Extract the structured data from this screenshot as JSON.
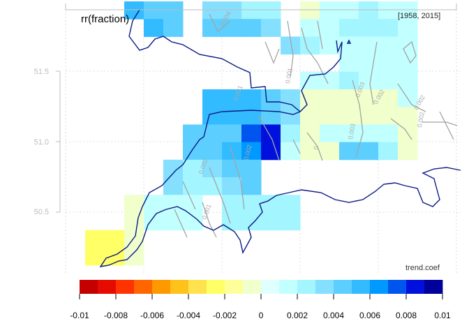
{
  "title": "rr(fraction)",
  "period": "[1958, 2015]",
  "legend_title": "trend.coef",
  "y_axis": {
    "ticks": [
      "51.5",
      "51.0",
      "50.5"
    ]
  },
  "colorbar": {
    "tick_labels": [
      "-0.01",
      "-0.008",
      "-0.006",
      "-0.004",
      "-0.002",
      "0",
      "0.002",
      "0.004",
      "0.006",
      "0.008",
      "0.01"
    ],
    "colors": [
      "#c40000",
      "#e60b00",
      "#ff3300",
      "#ff6600",
      "#ff9900",
      "#ffc21a",
      "#ffe24d",
      "#ffff66",
      "#ffff99",
      "#f0ffcc",
      "#e0ffff",
      "#c2ffff",
      "#a3f5ff",
      "#85e0ff",
      "#5ccfff",
      "#33bbff",
      "#0099ff",
      "#0055ee",
      "#0011dd",
      "#00009a"
    ]
  },
  "contour_labels": [
    "0.004",
    "0.002",
    "0.002",
    "0.001",
    "0",
    "0.003",
    "0.002",
    "0.002",
    "0.002",
    "0.001",
    "0.001",
    "0.003"
  ],
  "chart_data": {
    "type": "heatmap",
    "title": "rr(fraction)",
    "subtitle": "[1958, 2015]",
    "legend_title": "trend.coef",
    "yticks": [
      51.5,
      51.0,
      50.5
    ],
    "color_scale": {
      "min": -0.01,
      "max": 0.01,
      "step": 0.001
    },
    "cells": [
      {
        "row": 0,
        "col": 3,
        "value": 0.005
      },
      {
        "row": 0,
        "col": 4,
        "value": 0.004
      },
      {
        "row": 0,
        "col": 5,
        "value": 0.004
      },
      {
        "row": 0,
        "col": 7,
        "value": 0.003
      },
      {
        "row": 0,
        "col": 8,
        "value": 0.003
      },
      {
        "row": 0,
        "col": 9,
        "value": 0.002
      },
      {
        "row": 0,
        "col": 10,
        "value": 0.002
      },
      {
        "row": 0,
        "col": 12,
        "value": -0.001
      },
      {
        "row": 0,
        "col": 13,
        "value": 0.001
      },
      {
        "row": 0,
        "col": 14,
        "value": 0.001
      },
      {
        "row": 0,
        "col": 15,
        "value": 0.002
      },
      {
        "row": 0,
        "col": 16,
        "value": 0.001
      },
      {
        "row": 0,
        "col": 17,
        "value": 0.001
      },
      {
        "row": 1,
        "col": 4,
        "value": 0.005
      },
      {
        "row": 1,
        "col": 5,
        "value": 0.004
      },
      {
        "row": 1,
        "col": 7,
        "value": 0.004
      },
      {
        "row": 1,
        "col": 8,
        "value": 0.004
      },
      {
        "row": 1,
        "col": 9,
        "value": 0.004
      },
      {
        "row": 1,
        "col": 10,
        "value": 0.003
      },
      {
        "row": 1,
        "col": 12,
        "value": 0.001
      },
      {
        "row": 1,
        "col": 13,
        "value": 0.001
      },
      {
        "row": 1,
        "col": 14,
        "value": 0.002
      },
      {
        "row": 1,
        "col": 15,
        "value": 0.002
      },
      {
        "row": 1,
        "col": 16,
        "value": 0.002
      },
      {
        "row": 1,
        "col": 17,
        "value": 0.001
      },
      {
        "row": 2,
        "col": 11,
        "value": 0.003
      },
      {
        "row": 2,
        "col": 12,
        "value": 0.002
      },
      {
        "row": 2,
        "col": 13,
        "value": 0.001
      },
      {
        "row": 2,
        "col": 14,
        "value": 0.001
      },
      {
        "row": 2,
        "col": 15,
        "value": 0.001
      },
      {
        "row": 2,
        "col": 16,
        "value": 0.001
      },
      {
        "row": 2,
        "col": 17,
        "value": 0.001
      },
      {
        "row": 3,
        "col": 14,
        "value": 0.001
      },
      {
        "row": 3,
        "col": 15,
        "value": 0.001
      },
      {
        "row": 3,
        "col": 16,
        "value": 0.001
      },
      {
        "row": 3,
        "col": 17,
        "value": 0.001
      },
      {
        "row": 4,
        "col": 12,
        "value": 0.001
      },
      {
        "row": 4,
        "col": 13,
        "value": 0.001
      },
      {
        "row": 4,
        "col": 14,
        "value": 0.002
      },
      {
        "row": 4,
        "col": 15,
        "value": 0.001
      },
      {
        "row": 4,
        "col": 16,
        "value": 0.001
      },
      {
        "row": 4,
        "col": 17,
        "value": 0.001
      },
      {
        "row": 5,
        "col": 7,
        "value": 0.005
      },
      {
        "row": 5,
        "col": 8,
        "value": 0.005
      },
      {
        "row": 5,
        "col": 9,
        "value": 0.005
      },
      {
        "row": 5,
        "col": 10,
        "value": 0.004
      },
      {
        "row": 5,
        "col": 11,
        "value": 0.003
      },
      {
        "row": 5,
        "col": 12,
        "value": -0.001
      },
      {
        "row": 5,
        "col": 13,
        "value": -0.001
      },
      {
        "row": 5,
        "col": 14,
        "value": -0.001
      },
      {
        "row": 5,
        "col": 15,
        "value": -0.001
      },
      {
        "row": 5,
        "col": 16,
        "value": -0.001
      },
      {
        "row": 5,
        "col": 17,
        "value": 0.001
      },
      {
        "row": 6,
        "col": 7,
        "value": 0.005
      },
      {
        "row": 6,
        "col": 8,
        "value": 0.005
      },
      {
        "row": 6,
        "col": 9,
        "value": 0.005
      },
      {
        "row": 6,
        "col": 10,
        "value": 0.004
      },
      {
        "row": 6,
        "col": 11,
        "value": 0.003
      },
      {
        "row": 6,
        "col": 12,
        "value": -0.001
      },
      {
        "row": 6,
        "col": 13,
        "value": -0.001
      },
      {
        "row": 6,
        "col": 14,
        "value": -0.001
      },
      {
        "row": 6,
        "col": 15,
        "value": -0.001
      },
      {
        "row": 6,
        "col": 16,
        "value": -0.001
      },
      {
        "row": 6,
        "col": 17,
        "value": -0.001
      },
      {
        "row": 7,
        "col": 6,
        "value": 0.004
      },
      {
        "row": 7,
        "col": 7,
        "value": 0.004
      },
      {
        "row": 7,
        "col": 8,
        "value": 0.004
      },
      {
        "row": 7,
        "col": 9,
        "value": 0.007
      },
      {
        "row": 7,
        "col": 10,
        "value": 0.008
      },
      {
        "row": 7,
        "col": 11,
        "value": 0.002
      },
      {
        "row": 7,
        "col": 12,
        "value": -0.001
      },
      {
        "row": 7,
        "col": 13,
        "value": 0.001
      },
      {
        "row": 7,
        "col": 14,
        "value": 0.001
      },
      {
        "row": 7,
        "col": 15,
        "value": 0.001
      },
      {
        "row": 7,
        "col": 16,
        "value": 0.001
      },
      {
        "row": 7,
        "col": 17,
        "value": -0.001
      },
      {
        "row": 8,
        "col": 6,
        "value": 0.004
      },
      {
        "row": 8,
        "col": 7,
        "value": 0.004
      },
      {
        "row": 8,
        "col": 8,
        "value": 0.005
      },
      {
        "row": 8,
        "col": 9,
        "value": 0.006
      },
      {
        "row": 8,
        "col": 10,
        "value": 0.008
      },
      {
        "row": 8,
        "col": 11,
        "value": 0.001
      },
      {
        "row": 8,
        "col": 12,
        "value": -0.001
      },
      {
        "row": 8,
        "col": 13,
        "value": -0.001
      },
      {
        "row": 8,
        "col": 14,
        "value": 0.004
      },
      {
        "row": 8,
        "col": 15,
        "value": 0.004
      },
      {
        "row": 8,
        "col": 16,
        "value": 0.002
      },
      {
        "row": 8,
        "col": 17,
        "value": -0.001
      },
      {
        "row": 9,
        "col": 5,
        "value": 0.003
      },
      {
        "row": 9,
        "col": 6,
        "value": 0.002
      },
      {
        "row": 9,
        "col": 7,
        "value": 0.003
      },
      {
        "row": 9,
        "col": 8,
        "value": 0.004
      },
      {
        "row": 9,
        "col": 9,
        "value": 0.004
      },
      {
        "row": 10,
        "col": 5,
        "value": 0.003
      },
      {
        "row": 10,
        "col": 6,
        "value": 0.002
      },
      {
        "row": 10,
        "col": 7,
        "value": 0.002
      },
      {
        "row": 10,
        "col": 8,
        "value": 0.003
      },
      {
        "row": 10,
        "col": 9,
        "value": 0.004
      },
      {
        "row": 11,
        "col": 3,
        "value": -0.001
      },
      {
        "row": 11,
        "col": 4,
        "value": 0.001
      },
      {
        "row": 11,
        "col": 5,
        "value": 0.001
      },
      {
        "row": 11,
        "col": 6,
        "value": 0.001
      },
      {
        "row": 11,
        "col": 8,
        "value": 0.002
      },
      {
        "row": 11,
        "col": 9,
        "value": 0.002
      },
      {
        "row": 11,
        "col": 10,
        "value": 0.002
      },
      {
        "row": 11,
        "col": 11,
        "value": 0.002
      },
      {
        "row": 12,
        "col": 3,
        "value": -0.001
      },
      {
        "row": 12,
        "col": 4,
        "value": 0.001
      },
      {
        "row": 12,
        "col": 5,
        "value": 0.001
      },
      {
        "row": 12,
        "col": 6,
        "value": 0.001
      },
      {
        "row": 12,
        "col": 8,
        "value": 0.002
      },
      {
        "row": 12,
        "col": 9,
        "value": 0.002
      },
      {
        "row": 12,
        "col": 10,
        "value": 0.002
      },
      {
        "row": 12,
        "col": 11,
        "value": 0.002
      },
      {
        "row": 13,
        "col": 1,
        "value": -0.003
      },
      {
        "row": 13,
        "col": 2,
        "value": -0.003
      },
      {
        "row": 13,
        "col": 3,
        "value": -0.001
      },
      {
        "row": 14,
        "col": 1,
        "value": -0.003
      },
      {
        "row": 14,
        "col": 2,
        "value": -0.003
      },
      {
        "row": 14,
        "col": 3,
        "value": -0.001
      }
    ]
  }
}
